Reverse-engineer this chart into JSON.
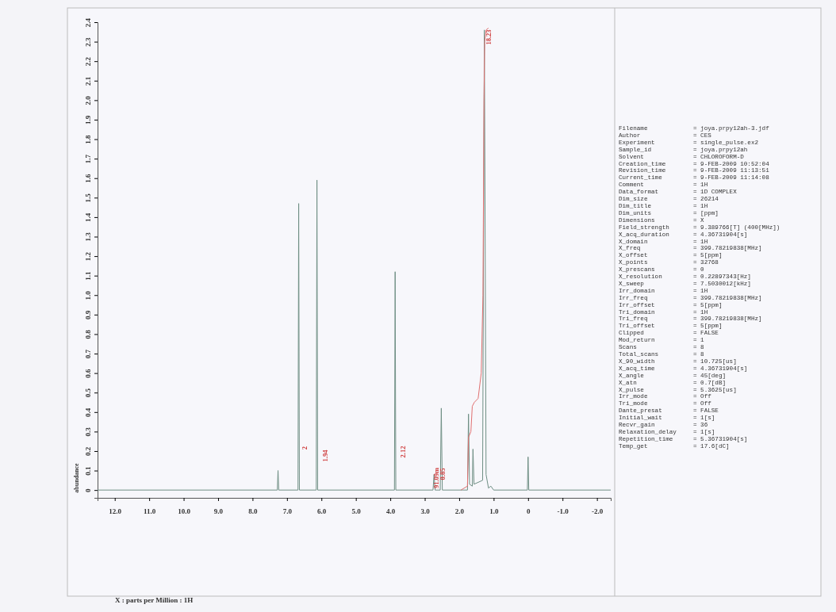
{
  "chart_data": [
    {
      "type": "line",
      "xlabel": "X : parts per Million : 1H",
      "ylabel": "abundance",
      "xlim": [
        12.5,
        -2.4
      ],
      "ylim": [
        -0.04,
        2.4
      ],
      "xticks": [
        {
          "value": 12,
          "label": "12.0"
        },
        {
          "value": 11,
          "label": "11.0"
        },
        {
          "value": 10,
          "label": "10.0"
        },
        {
          "value": 9,
          "label": "9.0"
        },
        {
          "value": 8,
          "label": "8.0"
        },
        {
          "value": 7,
          "label": "7.0"
        },
        {
          "value": 6,
          "label": "6.0"
        },
        {
          "value": 5,
          "label": "5.0"
        },
        {
          "value": 4,
          "label": "4.0"
        },
        {
          "value": 3,
          "label": "3.0"
        },
        {
          "value": 2,
          "label": "2.0"
        },
        {
          "value": 1,
          "label": "1.0"
        },
        0,
        {
          "value": -1,
          "label": "-1.0"
        },
        {
          "value": -2,
          "label": "-2.0"
        }
      ],
      "yticks": [
        0,
        0.1,
        0.2,
        0.3,
        0.4,
        0.5,
        0.6,
        0.7,
        0.8,
        0.9,
        {
          "value": 1,
          "label": "1.0"
        },
        1.1,
        1.2,
        1.3,
        1.4,
        1.5,
        1.6,
        1.7,
        1.8,
        1.9,
        {
          "value": 2,
          "label": "2.0"
        },
        2.1,
        2.2,
        2.3,
        2.4
      ],
      "series": [
        {
          "type": "line",
          "color": "#6f8f84",
          "x": [
            12.5,
            7.28,
            7.26,
            7.24,
            6.68,
            6.66,
            6.64,
            6.15,
            6.13,
            6.11,
            3.88,
            3.86,
            3.84,
            2.76,
            2.73,
            2.7,
            2.55,
            2.52,
            2.49,
            1.9,
            1.76,
            1.73,
            1.7,
            1.62,
            1.6,
            1.57,
            1.32,
            1.27,
            1.22,
            1.15,
            1.08,
            1.0,
            0.02,
            0,
            -0.02,
            -2.4
          ],
          "values": [
            0,
            0,
            0.1,
            0,
            0,
            1.47,
            0,
            0,
            1.59,
            0,
            0,
            1.12,
            0,
            0,
            0.08,
            0,
            0,
            0.42,
            0,
            0,
            0,
            0.39,
            0.03,
            0.02,
            0.21,
            0.03,
            0.05,
            2.36,
            0.08,
            0.01,
            0.02,
            0,
            0,
            0.17,
            0,
            0
          ]
        },
        {
          "type": "line",
          "color": "#e07070",
          "x": [
            1.95,
            1.76,
            1.73,
            1.66,
            1.62,
            1.56,
            1.45,
            1.36,
            1.31,
            1.28,
            1.26,
            1.22,
            1.15
          ],
          "values": [
            0,
            0.02,
            0.27,
            0.3,
            0.43,
            0.45,
            0.47,
            0.6,
            1.0,
            2.0,
            2.3,
            2.36,
            2.37
          ]
        }
      ],
      "annotations": [
        "2",
        "1.94",
        "2.12",
        "91.09m",
        "0.85",
        "18.23"
      ]
    },
    {
      "type": "other",
      "annotations": [
        "Filename = joya.prpy12ah-3.jdf",
        "Author = CES",
        "Experiment = single_pulse.ex2",
        "Sample_id = joya.prpy12ah",
        "Solvent = CHLOROFORM-D",
        "Creation_time = 9-FEB-2009 10:52:04",
        "Revision_time = 9-FEB-2009 11:13:51",
        "Current_time = 9-FEB-2009 11:14:08",
        "Comment = 1H",
        "Data_format = 1D COMPLEX",
        "Dim_size = 26214",
        "Dim_title = 1H",
        "Dim_units = [ppm]",
        "Dimensions = X",
        "Field_strength = 9.389766[T] (400[MHz])",
        "X_acq_duration = 4.36731904[s]",
        "X_domain = 1H",
        "X_freq = 399.78219838[MHz]",
        "X_offset = 5[ppm]",
        "X_points = 32768",
        "X_prescans = 0",
        "X_resolution = 0.22897343[Hz]",
        "X_sweep = 7.5030012[kHz]",
        "Irr_domain = 1H",
        "Irr_freq = 399.78219838[MHz]",
        "Irr_offset = 5[ppm]",
        "Tri_domain = 1H",
        "Tri_freq = 399.78219838[MHz]",
        "Tri_offset = 5[ppm]",
        "Clipped = FALSE",
        "Mod_return = 1",
        "Scans = 8",
        "Total_scans = 8",
        "X_90_width = 10.725[us]",
        "X_acq_time = 4.36731904[s]",
        "X_angle = 45[deg]",
        "X_atn = 0.7[dB]",
        "X_pulse = 5.3625[us]",
        "Irr_mode = Off",
        "Tri_mode = Off",
        "Dante_presat = FALSE",
        "Initial_wait = 1[s]",
        "Recvr_gain = 36",
        "Relaxation_delay = 1[s]",
        "Repetition_time = 5.36731904[s]",
        "Temp_get = 17.6[dC]"
      ]
    }
  ]
}
